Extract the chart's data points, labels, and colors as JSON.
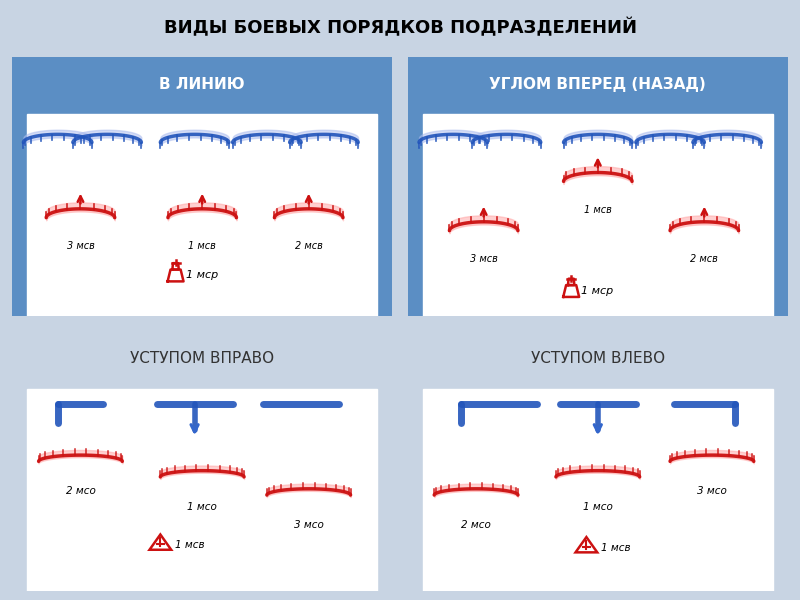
{
  "title": "ВИДЫ БОЕВЫХ ПОРЯДКОВ ПОДРАЗДЕЛЕНИЙ",
  "title_fontsize": 13,
  "bg_top": "#5b8ec4",
  "bg_bottom": "#c8d4e3",
  "cell_bg": "#ffffff",
  "outer_bg": "#c8d4e3",
  "panels": [
    {
      "label": "В ЛИНИЮ",
      "row": 0,
      "col": 0,
      "label_color": "#ffffff",
      "label_bold": true
    },
    {
      "label": "УГЛОМ ВПЕРЕД (НАЗАД)",
      "row": 0,
      "col": 1,
      "label_color": "#ffffff",
      "label_bold": true
    },
    {
      "label": "УСТУПОМ ВПРАВО",
      "row": 1,
      "col": 0,
      "label_color": "#333333",
      "label_bold": false
    },
    {
      "label": "УСТУПОМ ВЛЕВО",
      "row": 1,
      "col": 1,
      "label_color": "#333333",
      "label_bold": false
    }
  ],
  "blue_color": "#2255bb",
  "red_color": "#cc1111",
  "arrow_blue": "#3366cc"
}
